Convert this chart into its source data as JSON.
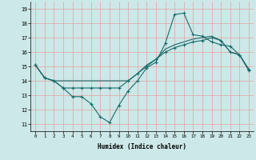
{
  "xlabel": "Humidex (Indice chaleur)",
  "bg_color": "#cce8e8",
  "grid_color": "#e8a0a0",
  "line_color": "#1a6b6b",
  "xlim": [
    -0.5,
    23.5
  ],
  "ylim": [
    10.5,
    19.5
  ],
  "yticks": [
    11,
    12,
    13,
    14,
    15,
    16,
    17,
    18,
    19
  ],
  "xticks": [
    0,
    1,
    2,
    3,
    4,
    5,
    6,
    7,
    8,
    9,
    10,
    11,
    12,
    13,
    14,
    15,
    16,
    17,
    18,
    19,
    20,
    21,
    22,
    23
  ],
  "line1_x": [
    0,
    1,
    2,
    3,
    4,
    5,
    6,
    7,
    8,
    9,
    10,
    11,
    12,
    13,
    14,
    15,
    16,
    17,
    18,
    19,
    20,
    21,
    22,
    23
  ],
  "line1_y": [
    15.1,
    14.2,
    14.0,
    13.5,
    12.9,
    12.9,
    12.4,
    11.5,
    11.1,
    12.3,
    13.3,
    14.0,
    14.9,
    15.3,
    16.6,
    18.6,
    18.7,
    17.2,
    17.1,
    16.7,
    16.5,
    16.4,
    15.8,
    14.7
  ],
  "line2_x": [
    0,
    1,
    2,
    3,
    4,
    5,
    6,
    7,
    8,
    9,
    10,
    11,
    12,
    13,
    14,
    15,
    16,
    17,
    18,
    19,
    20,
    21,
    22,
    23
  ],
  "line2_y": [
    15.1,
    14.2,
    14.0,
    13.5,
    13.5,
    13.5,
    13.5,
    13.5,
    13.5,
    13.5,
    14.0,
    14.5,
    15.0,
    15.5,
    16.0,
    16.3,
    16.5,
    16.7,
    16.8,
    17.0,
    16.8,
    16.0,
    15.8,
    14.8
  ],
  "line3_x": [
    0,
    1,
    2,
    3,
    4,
    5,
    6,
    7,
    8,
    9,
    10,
    11,
    12,
    13,
    14,
    15,
    16,
    17,
    18,
    19,
    20,
    21,
    22,
    23
  ],
  "line3_y": [
    15.1,
    14.2,
    14.0,
    14.0,
    14.0,
    14.0,
    14.0,
    14.0,
    14.0,
    14.0,
    14.0,
    14.5,
    15.1,
    15.5,
    16.2,
    16.5,
    16.7,
    16.9,
    17.0,
    17.1,
    16.8,
    16.0,
    15.8,
    14.8
  ],
  "marker": "+",
  "markersize": 3,
  "linewidth": 0.8
}
